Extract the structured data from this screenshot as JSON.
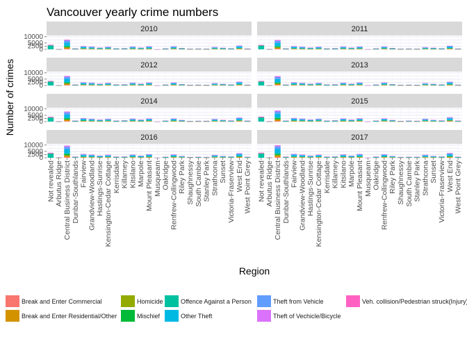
{
  "chart_data": {
    "type": "bar",
    "stacked": true,
    "title": "Vancouver yearly crime numbers",
    "xlabel": "Region",
    "ylabel": "Number of crimes",
    "ylim": [
      0,
      11000
    ],
    "y_ticks": [
      0,
      2500,
      5000,
      10000
    ],
    "panels": [
      "2010",
      "2011",
      "2012",
      "2013",
      "2014",
      "2015",
      "2016",
      "2017"
    ],
    "categories": [
      "Not revealed",
      "Arbutus Ridge",
      "Central Business District",
      "Dunbar-Southlands",
      "Fairview",
      "Grandview-Woodland",
      "Hastings-Sunrise",
      "Kensington-Cedar Cottage",
      "Kerrisdale",
      "Killarney",
      "Kitsilano",
      "Marpole",
      "Mount Pleasant",
      "Musqueam",
      "Oakridge",
      "Renfrew-Collingwood",
      "Riley Park",
      "Shaughnessy",
      "South Cambie",
      "Stanley Park",
      "Strathcona",
      "Sunset",
      "Victoria-Fraserview",
      "West End",
      "West Point Grey"
    ],
    "series": [
      {
        "name": "Break and Enter Commercial",
        "color": "#F8766D"
      },
      {
        "name": "Break and Enter Residential/Other",
        "color": "#D39200"
      },
      {
        "name": "Homicide",
        "color": "#93AA00"
      },
      {
        "name": "Mischief",
        "color": "#00BA38"
      },
      {
        "name": "Offence Against a Person",
        "color": "#00C19F"
      },
      {
        "name": "Other Theft",
        "color": "#00B9E3"
      },
      {
        "name": "Theft from Vehicle",
        "color": "#619CFF"
      },
      {
        "name": "Theft of Vechicle/Bicycle",
        "color": "#DB72FB"
      },
      {
        "name": "Veh. collision/Pedestrian struck(Injury)",
        "color": "#FF61C3"
      }
    ],
    "region_totals": {
      "2010": [
        3600,
        200,
        7600,
        700,
        2500,
        2100,
        1400,
        2000,
        800,
        900,
        2100,
        1400,
        2300,
        30,
        700,
        2300,
        1100,
        500,
        600,
        500,
        1800,
        1200,
        800,
        3000,
        600
      ],
      "2011": [
        3500,
        200,
        7300,
        700,
        2500,
        2000,
        1400,
        2000,
        700,
        900,
        2100,
        1400,
        2200,
        30,
        700,
        2200,
        1100,
        500,
        600,
        500,
        1700,
        1200,
        800,
        2800,
        600
      ],
      "2012": [
        3600,
        200,
        7500,
        700,
        2500,
        2100,
        1400,
        2000,
        800,
        900,
        2100,
        1400,
        2300,
        30,
        700,
        2300,
        1100,
        500,
        600,
        500,
        1800,
        1200,
        800,
        3000,
        600
      ],
      "2013": [
        3600,
        200,
        7300,
        700,
        2500,
        2000,
        1400,
        2000,
        800,
        900,
        2100,
        1400,
        2300,
        30,
        700,
        2300,
        1100,
        500,
        600,
        500,
        1800,
        1200,
        800,
        2900,
        600
      ],
      "2014": [
        3800,
        200,
        8000,
        800,
        2700,
        2200,
        1500,
        2100,
        800,
        1000,
        2300,
        1500,
        2400,
        30,
        800,
        2400,
        1200,
        500,
        600,
        600,
        2000,
        1300,
        900,
        3200,
        700
      ],
      "2015": [
        3900,
        300,
        8800,
        800,
        2800,
        2300,
        1600,
        2200,
        800,
        1000,
        2400,
        1500,
        2600,
        30,
        800,
        2500,
        1200,
        500,
        700,
        600,
        2100,
        1300,
        900,
        3400,
        700
      ],
      "2016": [
        3900,
        300,
        9500,
        900,
        2900,
        2400,
        1600,
        2300,
        900,
        1000,
        2500,
        1600,
        2800,
        30,
        800,
        2600,
        1300,
        600,
        700,
        600,
        2200,
        1400,
        1000,
        3600,
        700
      ],
      "2017": [
        4000,
        300,
        9900,
        900,
        3000,
        2500,
        1700,
        2400,
        900,
        1100,
        2600,
        1600,
        2900,
        30,
        900,
        2700,
        1300,
        600,
        700,
        700,
        2300,
        1400,
        1000,
        3700,
        800
      ]
    },
    "mix_default": [
      0.06,
      0.14,
      0.005,
      0.11,
      0.05,
      0.33,
      0.21,
      0.09,
      0.005
    ],
    "mix_not_revealed": [
      0,
      0,
      0,
      0,
      0.85,
      0,
      0,
      0,
      0.15
    ],
    "legend_position": "bottom",
    "grid": true
  }
}
